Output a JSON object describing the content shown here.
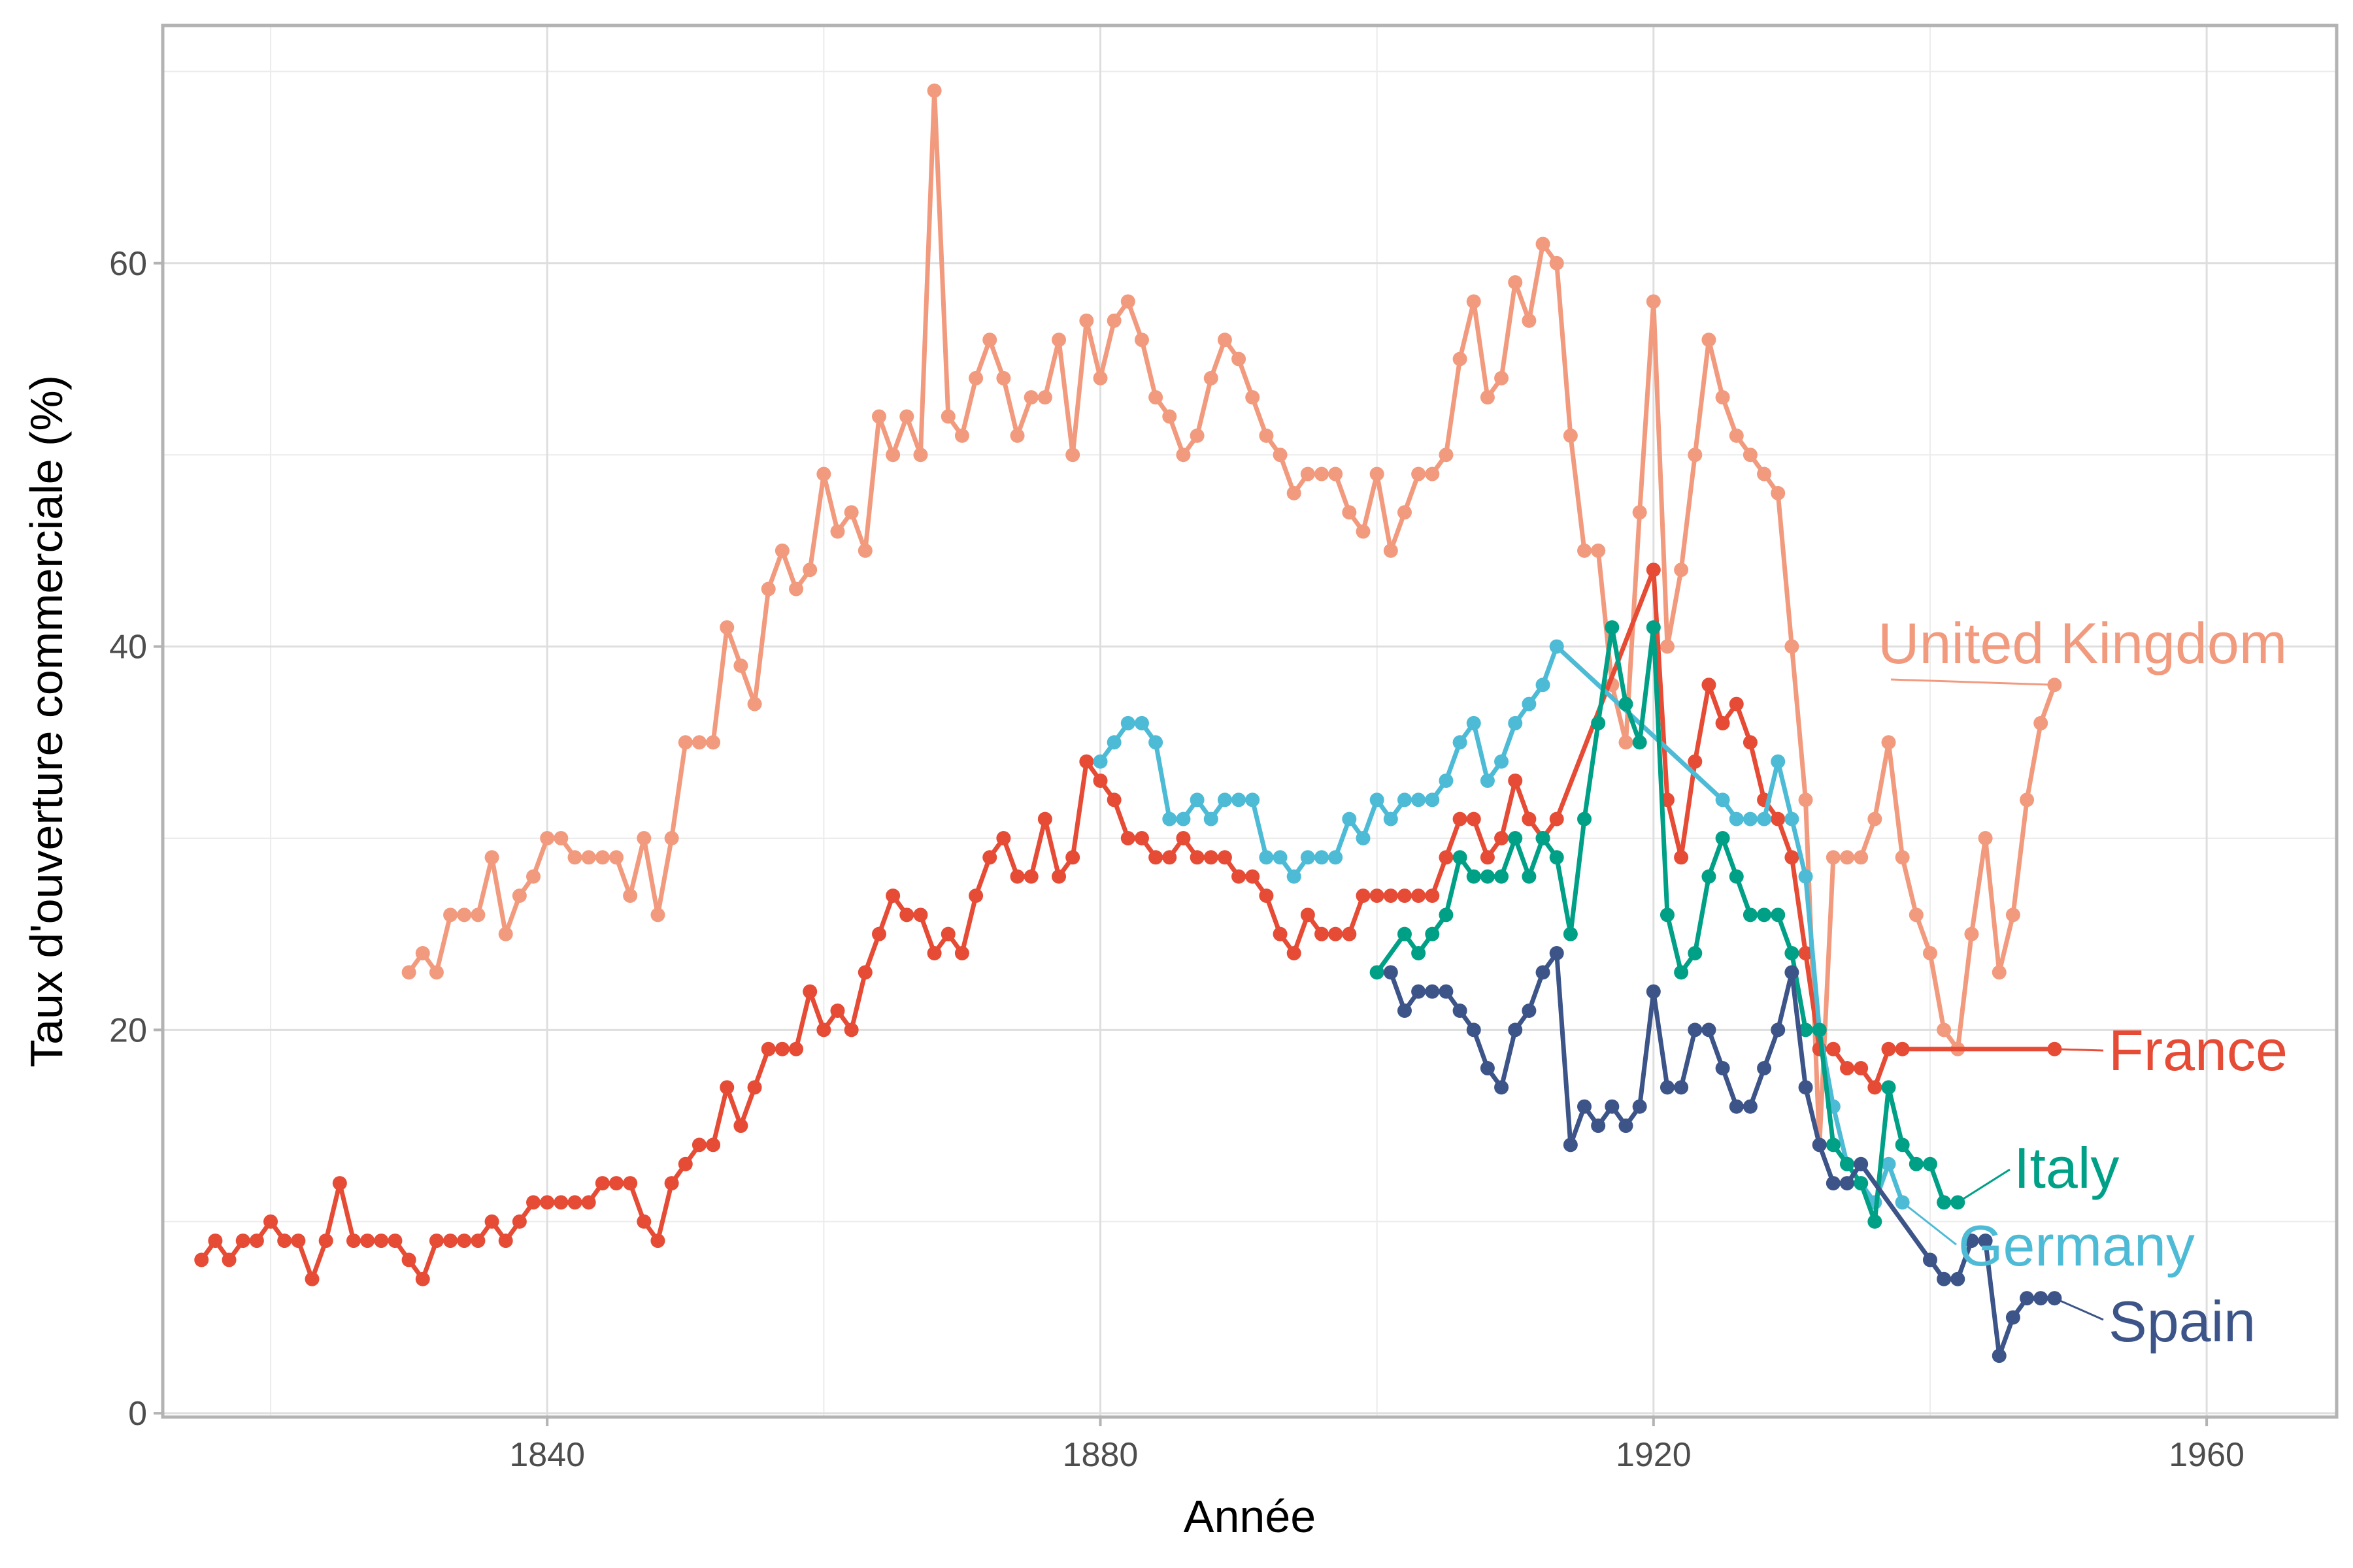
{
  "chart_data": {
    "type": "line",
    "title": "",
    "xlabel": "Année",
    "ylabel": "Taux d'ouverture commerciale (%)",
    "xlim": [
      1812.2,
      1969.4
    ],
    "ylim": [
      -0.2,
      72.4
    ],
    "xticks": [
      1840,
      1880,
      1920,
      1960
    ],
    "yticks": [
      0,
      20,
      40,
      60
    ],
    "xminor": [
      1820,
      1860,
      1900,
      1940
    ],
    "yminor": [
      10,
      30,
      50,
      70
    ],
    "grid": true,
    "legend": "direct labels at line ends",
    "series": [
      {
        "name": "United Kingdom",
        "color": "#F29A7E",
        "x": [
          1830,
          1831,
          1832,
          1833,
          1834,
          1835,
          1836,
          1837,
          1838,
          1839,
          1840,
          1841,
          1842,
          1843,
          1844,
          1845,
          1846,
          1847,
          1848,
          1849,
          1850,
          1851,
          1852,
          1853,
          1854,
          1855,
          1856,
          1857,
          1858,
          1859,
          1860,
          1861,
          1862,
          1863,
          1864,
          1865,
          1866,
          1867,
          1868,
          1869,
          1870,
          1871,
          1872,
          1873,
          1874,
          1875,
          1876,
          1877,
          1878,
          1879,
          1880,
          1881,
          1882,
          1883,
          1884,
          1885,
          1886,
          1887,
          1888,
          1889,
          1890,
          1891,
          1892,
          1893,
          1894,
          1895,
          1896,
          1897,
          1898,
          1899,
          1900,
          1901,
          1902,
          1903,
          1904,
          1905,
          1906,
          1907,
          1908,
          1909,
          1910,
          1911,
          1912,
          1913,
          1914,
          1915,
          1916,
          1917,
          1918,
          1919,
          1920,
          1921,
          1922,
          1923,
          1924,
          1925,
          1926,
          1927,
          1928,
          1929,
          1930,
          1931,
          1932,
          1933,
          1934,
          1935,
          1936,
          1937,
          1938,
          1939,
          1940,
          1941,
          1942,
          1943,
          1944,
          1945,
          1946,
          1947,
          1948,
          1949
        ],
        "y": [
          23,
          24,
          23,
          26,
          26,
          26,
          29,
          25,
          27,
          28,
          30,
          30,
          29,
          29,
          29,
          29,
          27,
          30,
          26,
          30,
          35,
          35,
          35,
          41,
          39,
          37,
          43,
          45,
          43,
          44,
          49,
          46,
          47,
          45,
          52,
          50,
          52,
          50,
          69,
          52,
          51,
          54,
          56,
          54,
          51,
          53,
          53,
          56,
          50,
          57,
          54,
          57,
          58,
          56,
          53,
          52,
          50,
          51,
          54,
          56,
          55,
          53,
          51,
          50,
          48,
          49,
          49,
          49,
          47,
          46,
          49,
          45,
          47,
          49,
          49,
          50,
          55,
          58,
          53,
          54,
          59,
          57,
          61,
          60,
          51,
          45,
          45,
          38,
          35,
          47,
          58,
          40,
          44,
          50,
          56,
          53,
          51,
          50,
          49,
          48,
          40,
          32,
          14,
          29,
          29,
          29,
          31,
          35,
          29,
          26,
          24,
          20,
          19,
          25,
          30,
          23,
          26,
          32,
          36,
          38
        ]
      },
      {
        "name": "France",
        "color": "#E64B35",
        "x": [
          1815,
          1816,
          1817,
          1818,
          1819,
          1820,
          1821,
          1822,
          1823,
          1824,
          1825,
          1826,
          1827,
          1828,
          1829,
          1830,
          1831,
          1832,
          1833,
          1834,
          1835,
          1836,
          1837,
          1838,
          1839,
          1840,
          1841,
          1842,
          1843,
          1844,
          1845,
          1846,
          1847,
          1848,
          1849,
          1850,
          1851,
          1852,
          1853,
          1854,
          1855,
          1856,
          1857,
          1858,
          1859,
          1860,
          1861,
          1862,
          1863,
          1864,
          1865,
          1866,
          1867,
          1868,
          1869,
          1870,
          1871,
          1872,
          1873,
          1874,
          1875,
          1876,
          1877,
          1878,
          1879,
          1880,
          1881,
          1882,
          1883,
          1884,
          1885,
          1886,
          1887,
          1888,
          1889,
          1890,
          1891,
          1892,
          1893,
          1894,
          1895,
          1896,
          1897,
          1898,
          1899,
          1900,
          1901,
          1902,
          1903,
          1904,
          1905,
          1906,
          1907,
          1908,
          1909,
          1910,
          1911,
          1912,
          1913,
          1920,
          1921,
          1922,
          1923,
          1924,
          1925,
          1926,
          1927,
          1928,
          1929,
          1930,
          1931,
          1932,
          1933,
          1934,
          1935,
          1936,
          1937,
          1938,
          1949
        ],
        "y": [
          8,
          9,
          8,
          9,
          9,
          10,
          9,
          9,
          7,
          9,
          12,
          9,
          9,
          9,
          9,
          8,
          7,
          9,
          9,
          9,
          9,
          10,
          9,
          10,
          11,
          11,
          11,
          11,
          11,
          12,
          12,
          12,
          10,
          9,
          12,
          13,
          14,
          14,
          17,
          15,
          17,
          19,
          19,
          19,
          22,
          20,
          21,
          20,
          23,
          25,
          27,
          26,
          26,
          24,
          25,
          24,
          27,
          29,
          30,
          28,
          28,
          31,
          28,
          29,
          34,
          33,
          32,
          30,
          30,
          29,
          29,
          30,
          29,
          29,
          29,
          28,
          28,
          27,
          25,
          24,
          26,
          25,
          25,
          25,
          27,
          27,
          27,
          27,
          27,
          27,
          29,
          31,
          31,
          29,
          30,
          33,
          31,
          30,
          31,
          44,
          32,
          29,
          34,
          38,
          36,
          37,
          35,
          32,
          31,
          29,
          24,
          19,
          19,
          18,
          18,
          17,
          19,
          19,
          19
        ]
      },
      {
        "name": "Germany",
        "color": "#4DBBD5",
        "x": [
          1880,
          1881,
          1882,
          1883,
          1884,
          1885,
          1886,
          1887,
          1888,
          1889,
          1890,
          1891,
          1892,
          1893,
          1894,
          1895,
          1896,
          1897,
          1898,
          1899,
          1900,
          1901,
          1902,
          1903,
          1904,
          1905,
          1906,
          1907,
          1908,
          1909,
          1910,
          1911,
          1912,
          1913,
          1925,
          1926,
          1927,
          1928,
          1929,
          1930,
          1931,
          1932,
          1933,
          1934,
          1935,
          1936,
          1937,
          1938
        ],
        "y": [
          34,
          35,
          36,
          36,
          35,
          31,
          31,
          32,
          31,
          32,
          32,
          32,
          29,
          29,
          28,
          29,
          29,
          29,
          31,
          30,
          32,
          31,
          32,
          32,
          32,
          33,
          35,
          36,
          33,
          34,
          36,
          37,
          38,
          40,
          32,
          31,
          31,
          31,
          34,
          31,
          28,
          20,
          16,
          13,
          12,
          11,
          13,
          11
        ]
      },
      {
        "name": "Italy",
        "color": "#00A087",
        "x": [
          1900,
          1902,
          1903,
          1904,
          1905,
          1906,
          1907,
          1908,
          1909,
          1910,
          1911,
          1912,
          1913,
          1914,
          1915,
          1916,
          1917,
          1918,
          1919,
          1920,
          1921,
          1922,
          1923,
          1924,
          1925,
          1926,
          1927,
          1928,
          1929,
          1930,
          1931,
          1932,
          1933,
          1934,
          1935,
          1936,
          1937,
          1938,
          1939,
          1940,
          1941,
          1942
        ],
        "y": [
          23,
          25,
          24,
          25,
          26,
          29,
          28,
          28,
          28,
          30,
          28,
          30,
          29,
          25,
          31,
          36,
          41,
          37,
          35,
          41,
          26,
          23,
          24,
          28,
          30,
          28,
          26,
          26,
          26,
          24,
          20,
          20,
          14,
          13,
          12,
          10,
          17,
          14,
          13,
          13,
          11,
          11
        ]
      },
      {
        "name": "Spain",
        "color": "#3C5488",
        "x": [
          1901,
          1902,
          1903,
          1904,
          1905,
          1906,
          1907,
          1908,
          1909,
          1910,
          1911,
          1912,
          1913,
          1914,
          1915,
          1916,
          1917,
          1918,
          1919,
          1920,
          1921,
          1922,
          1923,
          1924,
          1925,
          1926,
          1927,
          1928,
          1929,
          1930,
          1931,
          1932,
          1933,
          1934,
          1935,
          1940,
          1941,
          1942,
          1943,
          1944,
          1945,
          1946,
          1947,
          1948,
          1949
        ],
        "y": [
          23,
          21,
          22,
          22,
          22,
          21,
          20,
          18,
          17,
          20,
          21,
          23,
          24,
          14,
          16,
          15,
          16,
          15,
          16,
          22,
          17,
          17,
          20,
          20,
          18,
          16,
          16,
          18,
          20,
          23,
          17,
          14,
          12,
          12,
          13,
          8,
          7,
          7,
          9,
          9,
          3,
          5,
          6,
          6,
          6
        ]
      }
    ]
  }
}
